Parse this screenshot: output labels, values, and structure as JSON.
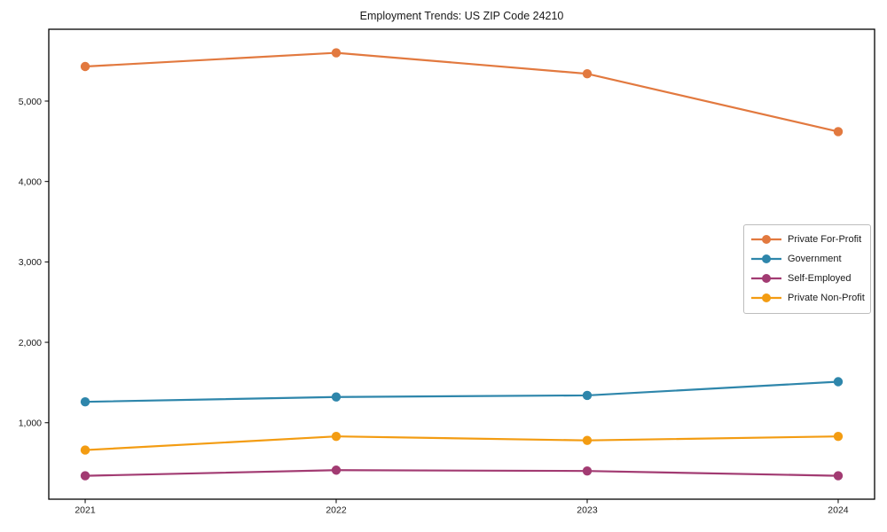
{
  "title": "Employment Trends: US ZIP Code 24210",
  "chart_data": {
    "type": "line",
    "title": "Employment Trends: US ZIP Code 24210",
    "x": [
      2021,
      2022,
      2023,
      2024
    ],
    "x_labels": [
      "2021",
      "2022",
      "2023",
      "2024"
    ],
    "xlabel": "",
    "ylabel": "",
    "y_ticks": [
      1000,
      2000,
      3000,
      4000,
      5000
    ],
    "y_tick_labels": [
      "1,000",
      "2,000",
      "3,000",
      "4,000",
      "5,000"
    ],
    "xlim": [
      2020.855,
      2024.145
    ],
    "ylim": [
      49,
      5893
    ],
    "grid": false,
    "legend_position": "center right",
    "marker": "circle",
    "series": [
      {
        "name": "Private For-Profit",
        "color": "#E2793F",
        "values": [
          5430,
          5600,
          5340,
          4620
        ]
      },
      {
        "name": "Government",
        "color": "#2E86AB",
        "values": [
          1260,
          1320,
          1340,
          1510
        ]
      },
      {
        "name": "Self-Employed",
        "color": "#A23B72",
        "values": [
          340,
          410,
          400,
          340
        ]
      },
      {
        "name": "Private Non-Profit",
        "color": "#F39C12",
        "values": [
          660,
          830,
          780,
          830
        ]
      }
    ],
    "axis_color": "#000000",
    "text_color": "#1a1a1a"
  }
}
